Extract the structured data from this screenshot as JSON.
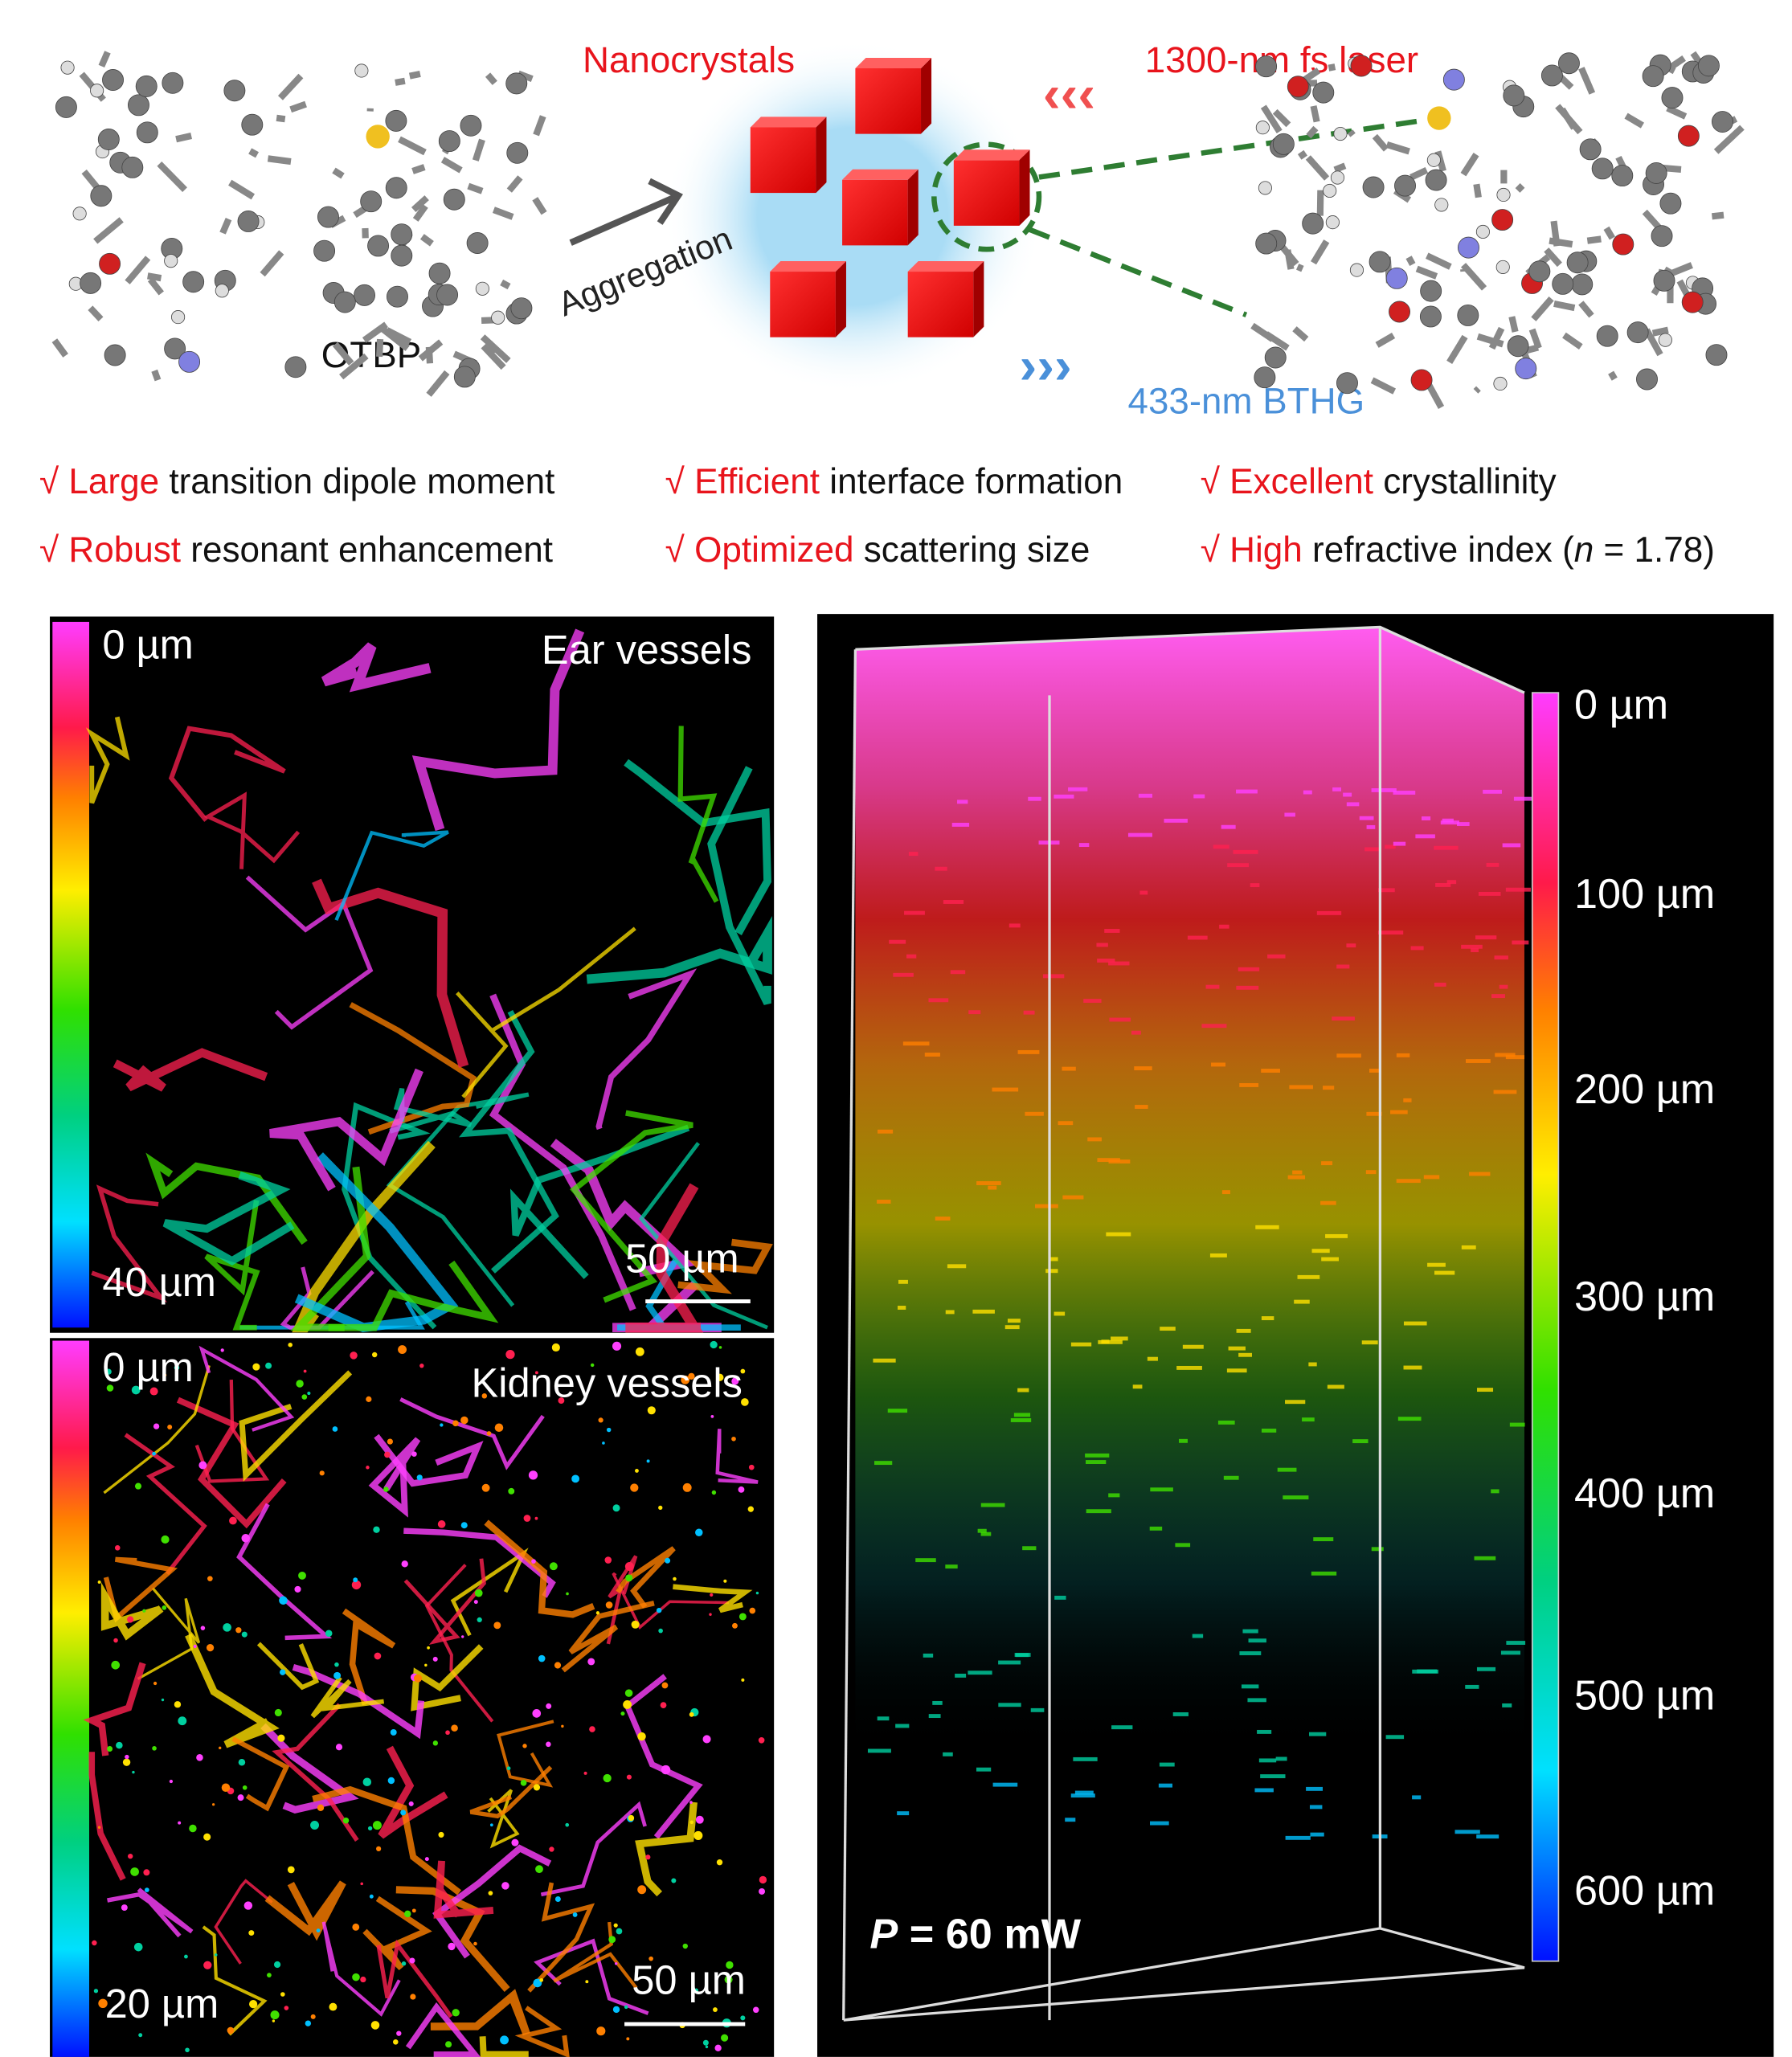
{
  "schematic": {
    "molecule_label": "OTBP",
    "arrow_label": "Aggregation",
    "nanocrystals": "Nanocrystals",
    "laser": "1300-nm fs laser",
    "emission": "433-nm BTHG"
  },
  "check": "√",
  "features": [
    {
      "highlight": "Large",
      "text": "transition dipole moment"
    },
    {
      "highlight": "Efficient",
      "text": "interface formation"
    },
    {
      "highlight": "Excellent",
      "text": "crystallinity"
    },
    {
      "highlight": "Robust",
      "text": "resonant enhancement"
    },
    {
      "highlight": "Optimized",
      "text": "scattering size"
    },
    {
      "highlight": "High",
      "text": "refractive index (",
      "symbol": "n",
      "suffix": " = 1.78)"
    }
  ],
  "ear_panel": {
    "title": "Ear vessels",
    "depth_top": "0 µm",
    "depth_bottom": "40 µm",
    "scale_bar": "50 µm"
  },
  "kidney_panel": {
    "title": "Kidney vessels",
    "depth_top": "0 µm",
    "depth_bottom": "20 µm",
    "scale_bar": "50 µm"
  },
  "volume_panel": {
    "depth_labels": [
      "0 µm",
      "100 µm",
      "200 µm",
      "300 µm",
      "400 µm",
      "500 µm",
      "600 µm"
    ],
    "power_symbol": "P",
    "power_value": " = 60 mW"
  }
}
